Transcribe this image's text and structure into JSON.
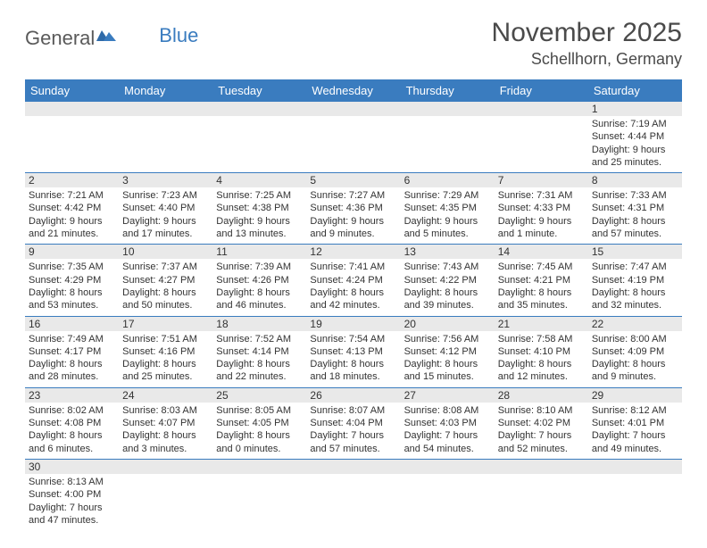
{
  "logo": {
    "text1": "General",
    "text2": "Blue"
  },
  "header": {
    "month_title": "November 2025",
    "location": "Schellhorn, Germany"
  },
  "colors": {
    "header_bg": "#3a7cbf",
    "row_divider": "#3a7cbf",
    "daynum_bg": "#e9e9e9",
    "text": "#333333",
    "title_text": "#4a4a4a"
  },
  "day_labels": [
    "Sunday",
    "Monday",
    "Tuesday",
    "Wednesday",
    "Thursday",
    "Friday",
    "Saturday"
  ],
  "weeks": [
    [
      {
        "n": "",
        "sunrise": "",
        "sunset": "",
        "daylight": ""
      },
      {
        "n": "",
        "sunrise": "",
        "sunset": "",
        "daylight": ""
      },
      {
        "n": "",
        "sunrise": "",
        "sunset": "",
        "daylight": ""
      },
      {
        "n": "",
        "sunrise": "",
        "sunset": "",
        "daylight": ""
      },
      {
        "n": "",
        "sunrise": "",
        "sunset": "",
        "daylight": ""
      },
      {
        "n": "",
        "sunrise": "",
        "sunset": "",
        "daylight": ""
      },
      {
        "n": "1",
        "sunrise": "Sunrise: 7:19 AM",
        "sunset": "Sunset: 4:44 PM",
        "daylight": "Daylight: 9 hours and 25 minutes."
      }
    ],
    [
      {
        "n": "2",
        "sunrise": "Sunrise: 7:21 AM",
        "sunset": "Sunset: 4:42 PM",
        "daylight": "Daylight: 9 hours and 21 minutes."
      },
      {
        "n": "3",
        "sunrise": "Sunrise: 7:23 AM",
        "sunset": "Sunset: 4:40 PM",
        "daylight": "Daylight: 9 hours and 17 minutes."
      },
      {
        "n": "4",
        "sunrise": "Sunrise: 7:25 AM",
        "sunset": "Sunset: 4:38 PM",
        "daylight": "Daylight: 9 hours and 13 minutes."
      },
      {
        "n": "5",
        "sunrise": "Sunrise: 7:27 AM",
        "sunset": "Sunset: 4:36 PM",
        "daylight": "Daylight: 9 hours and 9 minutes."
      },
      {
        "n": "6",
        "sunrise": "Sunrise: 7:29 AM",
        "sunset": "Sunset: 4:35 PM",
        "daylight": "Daylight: 9 hours and 5 minutes."
      },
      {
        "n": "7",
        "sunrise": "Sunrise: 7:31 AM",
        "sunset": "Sunset: 4:33 PM",
        "daylight": "Daylight: 9 hours and 1 minute."
      },
      {
        "n": "8",
        "sunrise": "Sunrise: 7:33 AM",
        "sunset": "Sunset: 4:31 PM",
        "daylight": "Daylight: 8 hours and 57 minutes."
      }
    ],
    [
      {
        "n": "9",
        "sunrise": "Sunrise: 7:35 AM",
        "sunset": "Sunset: 4:29 PM",
        "daylight": "Daylight: 8 hours and 53 minutes."
      },
      {
        "n": "10",
        "sunrise": "Sunrise: 7:37 AM",
        "sunset": "Sunset: 4:27 PM",
        "daylight": "Daylight: 8 hours and 50 minutes."
      },
      {
        "n": "11",
        "sunrise": "Sunrise: 7:39 AM",
        "sunset": "Sunset: 4:26 PM",
        "daylight": "Daylight: 8 hours and 46 minutes."
      },
      {
        "n": "12",
        "sunrise": "Sunrise: 7:41 AM",
        "sunset": "Sunset: 4:24 PM",
        "daylight": "Daylight: 8 hours and 42 minutes."
      },
      {
        "n": "13",
        "sunrise": "Sunrise: 7:43 AM",
        "sunset": "Sunset: 4:22 PM",
        "daylight": "Daylight: 8 hours and 39 minutes."
      },
      {
        "n": "14",
        "sunrise": "Sunrise: 7:45 AM",
        "sunset": "Sunset: 4:21 PM",
        "daylight": "Daylight: 8 hours and 35 minutes."
      },
      {
        "n": "15",
        "sunrise": "Sunrise: 7:47 AM",
        "sunset": "Sunset: 4:19 PM",
        "daylight": "Daylight: 8 hours and 32 minutes."
      }
    ],
    [
      {
        "n": "16",
        "sunrise": "Sunrise: 7:49 AM",
        "sunset": "Sunset: 4:17 PM",
        "daylight": "Daylight: 8 hours and 28 minutes."
      },
      {
        "n": "17",
        "sunrise": "Sunrise: 7:51 AM",
        "sunset": "Sunset: 4:16 PM",
        "daylight": "Daylight: 8 hours and 25 minutes."
      },
      {
        "n": "18",
        "sunrise": "Sunrise: 7:52 AM",
        "sunset": "Sunset: 4:14 PM",
        "daylight": "Daylight: 8 hours and 22 minutes."
      },
      {
        "n": "19",
        "sunrise": "Sunrise: 7:54 AM",
        "sunset": "Sunset: 4:13 PM",
        "daylight": "Daylight: 8 hours and 18 minutes."
      },
      {
        "n": "20",
        "sunrise": "Sunrise: 7:56 AM",
        "sunset": "Sunset: 4:12 PM",
        "daylight": "Daylight: 8 hours and 15 minutes."
      },
      {
        "n": "21",
        "sunrise": "Sunrise: 7:58 AM",
        "sunset": "Sunset: 4:10 PM",
        "daylight": "Daylight: 8 hours and 12 minutes."
      },
      {
        "n": "22",
        "sunrise": "Sunrise: 8:00 AM",
        "sunset": "Sunset: 4:09 PM",
        "daylight": "Daylight: 8 hours and 9 minutes."
      }
    ],
    [
      {
        "n": "23",
        "sunrise": "Sunrise: 8:02 AM",
        "sunset": "Sunset: 4:08 PM",
        "daylight": "Daylight: 8 hours and 6 minutes."
      },
      {
        "n": "24",
        "sunrise": "Sunrise: 8:03 AM",
        "sunset": "Sunset: 4:07 PM",
        "daylight": "Daylight: 8 hours and 3 minutes."
      },
      {
        "n": "25",
        "sunrise": "Sunrise: 8:05 AM",
        "sunset": "Sunset: 4:05 PM",
        "daylight": "Daylight: 8 hours and 0 minutes."
      },
      {
        "n": "26",
        "sunrise": "Sunrise: 8:07 AM",
        "sunset": "Sunset: 4:04 PM",
        "daylight": "Daylight: 7 hours and 57 minutes."
      },
      {
        "n": "27",
        "sunrise": "Sunrise: 8:08 AM",
        "sunset": "Sunset: 4:03 PM",
        "daylight": "Daylight: 7 hours and 54 minutes."
      },
      {
        "n": "28",
        "sunrise": "Sunrise: 8:10 AM",
        "sunset": "Sunset: 4:02 PM",
        "daylight": "Daylight: 7 hours and 52 minutes."
      },
      {
        "n": "29",
        "sunrise": "Sunrise: 8:12 AM",
        "sunset": "Sunset: 4:01 PM",
        "daylight": "Daylight: 7 hours and 49 minutes."
      }
    ],
    [
      {
        "n": "30",
        "sunrise": "Sunrise: 8:13 AM",
        "sunset": "Sunset: 4:00 PM",
        "daylight": "Daylight: 7 hours and 47 minutes."
      },
      {
        "n": "",
        "sunrise": "",
        "sunset": "",
        "daylight": ""
      },
      {
        "n": "",
        "sunrise": "",
        "sunset": "",
        "daylight": ""
      },
      {
        "n": "",
        "sunrise": "",
        "sunset": "",
        "daylight": ""
      },
      {
        "n": "",
        "sunrise": "",
        "sunset": "",
        "daylight": ""
      },
      {
        "n": "",
        "sunrise": "",
        "sunset": "",
        "daylight": ""
      },
      {
        "n": "",
        "sunrise": "",
        "sunset": "",
        "daylight": ""
      }
    ]
  ]
}
